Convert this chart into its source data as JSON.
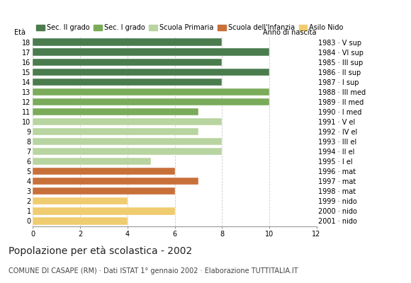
{
  "ages": [
    18,
    17,
    16,
    15,
    14,
    13,
    12,
    11,
    10,
    9,
    8,
    7,
    6,
    5,
    4,
    3,
    2,
    1,
    0
  ],
  "anno_nascita": [
    "1983 · V sup",
    "1984 · VI sup",
    "1985 · III sup",
    "1986 · II sup",
    "1987 · I sup",
    "1988 · III med",
    "1989 · II med",
    "1990 · I med",
    "1991 · V el",
    "1992 · IV el",
    "1993 · III el",
    "1994 · II el",
    "1995 · I el",
    "1996 · mat",
    "1997 · mat",
    "1998 · mat",
    "1999 · nido",
    "2000 · nido",
    "2001 · nido"
  ],
  "values": [
    8,
    10,
    8,
    10,
    8,
    10,
    10,
    7,
    8,
    7,
    8,
    8,
    5,
    6,
    7,
    6,
    4,
    6,
    4
  ],
  "color_map": {
    "18": "#4a7c4e",
    "17": "#4a7c4e",
    "16": "#4a7c4e",
    "15": "#4a7c4e",
    "14": "#4a7c4e",
    "13": "#7aab5a",
    "12": "#7aab5a",
    "11": "#7aab5a",
    "10": "#b8d4a0",
    "9": "#b8d4a0",
    "8": "#b8d4a0",
    "7": "#b8d4a0",
    "6": "#b8d4a0",
    "5": "#c8703a",
    "4": "#c8703a",
    "3": "#c8703a",
    "2": "#f0cc70",
    "1": "#f0cc70",
    "0": "#f0cc70"
  },
  "title": "Popolazione per età scolastica - 2002",
  "subtitle": "COMUNE DI CASAPE (RM) · Dati ISTAT 1° gennaio 2002 · Elaborazione TUTTITALIA.IT",
  "xlabel_age": "Età",
  "xlabel_year": "Anno di nascita",
  "xlim": [
    0,
    12
  ],
  "xticks": [
    0,
    2,
    4,
    6,
    8,
    10,
    12
  ],
  "legend_labels": [
    "Sec. II grado",
    "Sec. I grado",
    "Scuola Primaria",
    "Scuola dell'Infanzia",
    "Asilo Nido"
  ],
  "legend_colors": [
    "#4a7c4e",
    "#7aab5a",
    "#b8d4a0",
    "#c8703a",
    "#f0cc70"
  ],
  "grid_color": "#cccccc",
  "bar_height": 0.75,
  "title_fontsize": 10,
  "subtitle_fontsize": 7,
  "tick_fontsize": 7,
  "legend_fontsize": 7
}
